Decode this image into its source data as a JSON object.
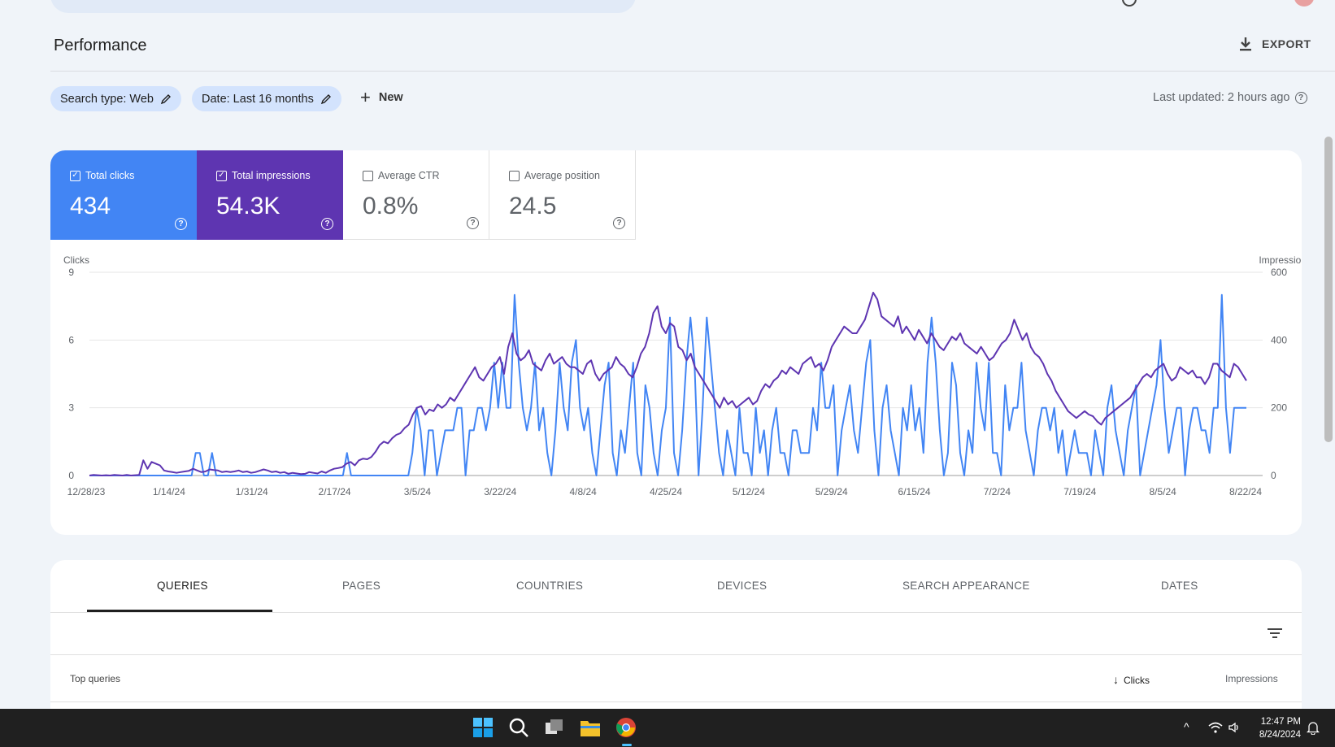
{
  "header": {
    "title": "Performance",
    "export_label": "EXPORT"
  },
  "filters": {
    "search_type": "Search type: Web",
    "date": "Date: Last 16 months",
    "new_label": "New",
    "last_updated": "Last updated: 2 hours ago"
  },
  "metrics": [
    {
      "label": "Total clicks",
      "value": "434",
      "checked": true,
      "color": "#4285f4"
    },
    {
      "label": "Total impressions",
      "value": "54.3K",
      "checked": true,
      "color": "#5e35b1"
    },
    {
      "label": "Average CTR",
      "value": "0.8%",
      "checked": false
    },
    {
      "label": "Average position",
      "value": "24.5",
      "checked": false
    }
  ],
  "chart_data": {
    "type": "line",
    "left_axis_label": "Clicks",
    "right_axis_label": "Impressions",
    "left_ticks": [
      "9",
      "6",
      "3",
      "0"
    ],
    "right_ticks": [
      "600",
      "400",
      "200",
      "0"
    ],
    "left_range": [
      0,
      9
    ],
    "right_range": [
      0,
      600
    ],
    "x_ticks": [
      "12/28/23",
      "1/14/24",
      "1/31/24",
      "2/17/24",
      "3/5/24",
      "3/22/24",
      "4/8/24",
      "4/25/24",
      "5/12/24",
      "5/29/24",
      "6/15/24",
      "7/2/24",
      "7/19/24",
      "8/5/24",
      "8/22/24"
    ],
    "grid": true,
    "series": [
      {
        "name": "Clicks",
        "color": "#4285f4",
        "axis": "left",
        "values": [
          0,
          0,
          0,
          0,
          0,
          0,
          0,
          0,
          0,
          0,
          0,
          0,
          0,
          0,
          0,
          0,
          0,
          0,
          0,
          0,
          0,
          0,
          0,
          0,
          0,
          0,
          1,
          1,
          0,
          0,
          1,
          0,
          0,
          0,
          0,
          0,
          0,
          0,
          0,
          0,
          0,
          0,
          0,
          0,
          0,
          0,
          0,
          0,
          0,
          0,
          0,
          0,
          0,
          0,
          0,
          0,
          0,
          0,
          0,
          0,
          0,
          0,
          0,
          1,
          0,
          0,
          0,
          0,
          0,
          0,
          0,
          0,
          0,
          0,
          0,
          0,
          0,
          0,
          0,
          1,
          3,
          2,
          0,
          2,
          2,
          0,
          1,
          2,
          2,
          2,
          3,
          3,
          0,
          2,
          2,
          3,
          3,
          2,
          3,
          5,
          3,
          5,
          3,
          3,
          8,
          5,
          3,
          2,
          3,
          5,
          2,
          3,
          1,
          0,
          2,
          5,
          3,
          2,
          5,
          6,
          3,
          2,
          3,
          1,
          0,
          2,
          4,
          5,
          1,
          0,
          2,
          1,
          3,
          5,
          1,
          0,
          4,
          3,
          1,
          0,
          2,
          3,
          7,
          1,
          0,
          2,
          5,
          7,
          5,
          0,
          3,
          7,
          5,
          3,
          1,
          0,
          2,
          1,
          0,
          3,
          1,
          1,
          0,
          3,
          1,
          2,
          0,
          2,
          3,
          1,
          1,
          0,
          2,
          2,
          1,
          1,
          1,
          3,
          2,
          5,
          3,
          3,
          4,
          0,
          2,
          3,
          4,
          2,
          1,
          3,
          5,
          6,
          2,
          0,
          3,
          4,
          2,
          1,
          0,
          3,
          2,
          4,
          2,
          3,
          1,
          5,
          7,
          5,
          2,
          0,
          1,
          5,
          4,
          1,
          0,
          2,
          1,
          5,
          3,
          2,
          5,
          1,
          1,
          0,
          4,
          2,
          3,
          3,
          5,
          2,
          1,
          0,
          2,
          3,
          3,
          2,
          3,
          1,
          2,
          0,
          1,
          2,
          1,
          1,
          1,
          0,
          2,
          1,
          0,
          3,
          4,
          2,
          1,
          0,
          2,
          3,
          4,
          0,
          1,
          2,
          3,
          4,
          6,
          3,
          1,
          2,
          3,
          3,
          0,
          2,
          3,
          3,
          2,
          2,
          1,
          3,
          3,
          8,
          3,
          1,
          3,
          3,
          3,
          3
        ]
      },
      {
        "name": "Impressions",
        "color": "#5e35b1",
        "axis": "right",
        "values": [
          0,
          2,
          1,
          0,
          1,
          0,
          2,
          1,
          0,
          2,
          0,
          1,
          2,
          45,
          20,
          40,
          35,
          30,
          15,
          12,
          10,
          8,
          10,
          12,
          14,
          20,
          15,
          10,
          12,
          18,
          16,
          15,
          10,
          12,
          10,
          12,
          15,
          10,
          12,
          8,
          10,
          14,
          18,
          15,
          10,
          12,
          8,
          10,
          5,
          8,
          6,
          4,
          5,
          10,
          8,
          6,
          12,
          8,
          15,
          20,
          22,
          25,
          35,
          40,
          30,
          45,
          50,
          48,
          55,
          70,
          90,
          100,
          95,
          110,
          120,
          125,
          140,
          150,
          180,
          200,
          205,
          180,
          195,
          190,
          210,
          200,
          210,
          230,
          220,
          240,
          260,
          280,
          300,
          320,
          290,
          280,
          300,
          320,
          330,
          350,
          300,
          380,
          420,
          360,
          340,
          350,
          370,
          330,
          320,
          310,
          340,
          360,
          330,
          340,
          350,
          330,
          320,
          320,
          310,
          300,
          330,
          340,
          300,
          280,
          300,
          310,
          320,
          350,
          330,
          320,
          300,
          290,
          320,
          360,
          380,
          420,
          480,
          500,
          440,
          420,
          450,
          440,
          380,
          370,
          340,
          360,
          320,
          300,
          280,
          260,
          240,
          220,
          200,
          230,
          210,
          220,
          200,
          210,
          220,
          230,
          210,
          220,
          250,
          270,
          260,
          280,
          290,
          310,
          300,
          320,
          310,
          300,
          330,
          340,
          350,
          320,
          330,
          310,
          340,
          380,
          400,
          420,
          440,
          430,
          420,
          420,
          440,
          460,
          500,
          540,
          520,
          470,
          460,
          450,
          440,
          470,
          420,
          440,
          420,
          400,
          430,
          410,
          390,
          420,
          400,
          380,
          370,
          390,
          410,
          400,
          420,
          390,
          380,
          370,
          360,
          380,
          360,
          340,
          350,
          370,
          390,
          400,
          420,
          460,
          430,
          400,
          420,
          380,
          360,
          350,
          330,
          300,
          280,
          250,
          230,
          210,
          190,
          180,
          170,
          180,
          190,
          180,
          175,
          160,
          150,
          170,
          180,
          190,
          200,
          210,
          220,
          230,
          250,
          270,
          290,
          300,
          290,
          310,
          320,
          330,
          300,
          280,
          290,
          320,
          310,
          300,
          310,
          290,
          290,
          270,
          290,
          330,
          330,
          310,
          300,
          290,
          330,
          320,
          300,
          280
        ]
      }
    ]
  },
  "tabs": [
    "QUERIES",
    "PAGES",
    "COUNTRIES",
    "DEVICES",
    "SEARCH APPEARANCE",
    "DATES"
  ],
  "active_tab": "QUERIES",
  "table": {
    "col_query": "Top queries",
    "col_clicks": "Clicks",
    "col_impressions": "Impressions"
  },
  "taskbar": {
    "time": "12:47 PM",
    "date": "8/24/2024"
  }
}
